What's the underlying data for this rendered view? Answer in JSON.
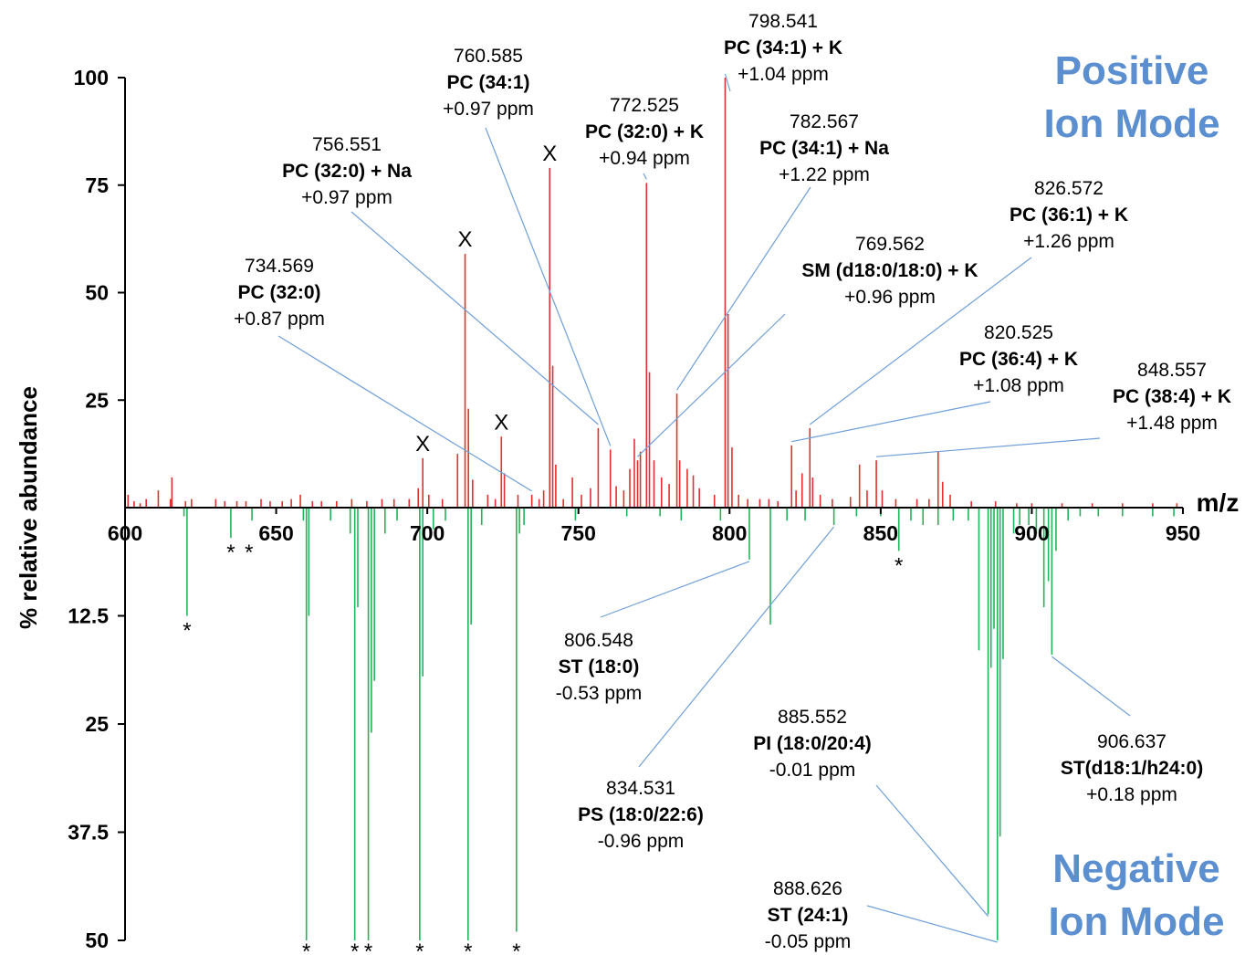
{
  "chart_data": {
    "type": "bar",
    "ylabel": "% relative abundance",
    "xlabel": "m/z",
    "xlim": [
      600,
      950
    ],
    "x_ticks": [
      "600",
      "650",
      "700",
      "750",
      "800",
      "850",
      "900",
      "950"
    ],
    "positive_ylim": [
      0,
      100
    ],
    "positive_y_ticks": [
      "100",
      "75",
      "50",
      "25"
    ],
    "negative_ylim": [
      0,
      50
    ],
    "negative_y_ticks": [
      "12.5",
      "25",
      "37.5",
      "50"
    ],
    "modes": {
      "positive": [
        "Positive",
        "Ion Mode"
      ],
      "negative": [
        "Negative",
        "Ion Mode"
      ]
    },
    "colors": {
      "positive": "#e03030",
      "negative": "#22b45a",
      "leader": "#6f9fd8",
      "mode_title": "#5b8fd0"
    },
    "series": [
      {
        "name": "positive",
        "peaks": [
          [
            601,
            3
          ],
          [
            603,
            1.5
          ],
          [
            605,
            1
          ],
          [
            607,
            2
          ],
          [
            611,
            4
          ],
          [
            615,
            2
          ],
          [
            615.5,
            7
          ],
          [
            620,
            1.5
          ],
          [
            622,
            2
          ],
          [
            630,
            2
          ],
          [
            633,
            1.5
          ],
          [
            637,
            1.5
          ],
          [
            640,
            1.5
          ],
          [
            645,
            2
          ],
          [
            648,
            1.5
          ],
          [
            652,
            1.5
          ],
          [
            655,
            2
          ],
          [
            658,
            3
          ],
          [
            662,
            1.5
          ],
          [
            665,
            1.5
          ],
          [
            670,
            1.5
          ],
          [
            675,
            2
          ],
          [
            680,
            1.5
          ],
          [
            685,
            2
          ],
          [
            689,
            2
          ],
          [
            694,
            2
          ],
          [
            697,
            4.5
          ],
          [
            698.5,
            11.5
          ],
          [
            700.5,
            3
          ],
          [
            705,
            2
          ],
          [
            710,
            12.5
          ],
          [
            712.5,
            59
          ],
          [
            713.6,
            23
          ],
          [
            715,
            6.5
          ],
          [
            720,
            3
          ],
          [
            722.5,
            2
          ],
          [
            724.5,
            16.5
          ],
          [
            725.5,
            8
          ],
          [
            730,
            3
          ],
          [
            734.569,
            3
          ],
          [
            737,
            2
          ],
          [
            738.5,
            4
          ],
          [
            740.5,
            79
          ],
          [
            741.5,
            33
          ],
          [
            742.5,
            10
          ],
          [
            745,
            2
          ],
          [
            748,
            7
          ],
          [
            751,
            3
          ],
          [
            754,
            4.5
          ],
          [
            756.551,
            18.5
          ],
          [
            760.585,
            13.5
          ],
          [
            762.5,
            5
          ],
          [
            765,
            4
          ],
          [
            767,
            9
          ],
          [
            768.5,
            16
          ],
          [
            769.562,
            11
          ],
          [
            770.5,
            13
          ],
          [
            772.525,
            75.5
          ],
          [
            773.5,
            31.5
          ],
          [
            775,
            11
          ],
          [
            777.5,
            7
          ],
          [
            780,
            5.5
          ],
          [
            782.567,
            26.5
          ],
          [
            783.5,
            11
          ],
          [
            786,
            9
          ],
          [
            788,
            7.5
          ],
          [
            790,
            4.5
          ],
          [
            795,
            3
          ],
          [
            798.541,
            100
          ],
          [
            799.5,
            45
          ],
          [
            800.8,
            14
          ],
          [
            803,
            3
          ],
          [
            806,
            2
          ],
          [
            810,
            2
          ],
          [
            813,
            2
          ],
          [
            816,
            1.5
          ],
          [
            820.525,
            14.5
          ],
          [
            822,
            4
          ],
          [
            824,
            8
          ],
          [
            826.572,
            18.5
          ],
          [
            827.5,
            7
          ],
          [
            830,
            3
          ],
          [
            834,
            2
          ],
          [
            840,
            2.5
          ],
          [
            843,
            10
          ],
          [
            845.5,
            4
          ],
          [
            848.557,
            11
          ],
          [
            850.5,
            4
          ],
          [
            855,
            2
          ],
          [
            862,
            2
          ],
          [
            866,
            2
          ],
          [
            869,
            13
          ],
          [
            870.5,
            6
          ],
          [
            873,
            3
          ],
          [
            880,
            1.5
          ],
          [
            888,
            1.5
          ],
          [
            895,
            1
          ],
          [
            900,
            1
          ],
          [
            910,
            1
          ],
          [
            920,
            1
          ],
          [
            930,
            1
          ],
          [
            940,
            1
          ],
          [
            948,
            1
          ]
        ]
      },
      {
        "name": "negative",
        "peaks": [
          [
            619.5,
            1
          ],
          [
            620.5,
            12.5
          ],
          [
            635,
            3.5
          ],
          [
            642,
            1.5
          ],
          [
            659,
            1.5
          ],
          [
            660,
            50
          ],
          [
            660.8,
            12.5
          ],
          [
            668,
            1.5
          ],
          [
            674.5,
            3
          ],
          [
            676,
            50
          ],
          [
            677,
            11.5
          ],
          [
            680.5,
            50
          ],
          [
            681.5,
            26
          ],
          [
            682.5,
            20
          ],
          [
            686,
            3
          ],
          [
            690,
            1.5
          ],
          [
            697.5,
            50
          ],
          [
            698.5,
            19.5
          ],
          [
            702,
            2.5
          ],
          [
            706,
            1.5
          ],
          [
            713.5,
            50
          ],
          [
            714.5,
            13.5
          ],
          [
            718,
            2
          ],
          [
            729.5,
            49
          ],
          [
            730.5,
            3
          ],
          [
            732,
            2
          ],
          [
            749,
            1.5
          ],
          [
            766,
            1
          ],
          [
            777,
            1
          ],
          [
            784,
            1.5
          ],
          [
            797,
            1.5
          ],
          [
            806.548,
            6
          ],
          [
            813.5,
            13.5
          ],
          [
            819,
            1.5
          ],
          [
            825,
            1.5
          ],
          [
            834.531,
            2
          ],
          [
            842,
            1
          ],
          [
            850,
            1
          ],
          [
            856,
            5
          ],
          [
            860,
            1.5
          ],
          [
            864,
            2
          ],
          [
            869,
            2
          ],
          [
            874,
            1.5
          ],
          [
            879,
            1.5
          ],
          [
            882.5,
            16.5
          ],
          [
            885.552,
            47
          ],
          [
            886.5,
            18.5
          ],
          [
            887.5,
            14
          ],
          [
            888.626,
            50
          ],
          [
            889.5,
            38
          ],
          [
            890.5,
            17.5
          ],
          [
            894,
            3
          ],
          [
            896,
            2
          ],
          [
            899,
            2
          ],
          [
            901.5,
            3
          ],
          [
            904,
            11.5
          ],
          [
            905.5,
            8.5
          ],
          [
            906.637,
            17
          ],
          [
            908,
            5
          ],
          [
            912,
            1.5
          ],
          [
            916,
            1
          ],
          [
            922,
            1
          ],
          [
            930,
            1
          ],
          [
            940,
            1
          ],
          [
            947,
            1
          ]
        ]
      }
    ],
    "markers": [
      {
        "text": "X",
        "mz": 698.5,
        "mode": "positive",
        "value": 11.5
      },
      {
        "text": "X",
        "mz": 712.5,
        "mode": "positive",
        "value": 59
      },
      {
        "text": "X",
        "mz": 724.5,
        "mode": "positive",
        "value": 16.5
      },
      {
        "text": "X",
        "mz": 740.5,
        "mode": "positive",
        "value": 79
      },
      {
        "text": "*",
        "mz": 620.5,
        "mode": "negative",
        "value": 12.5
      },
      {
        "text": "*",
        "mz": 635,
        "mode": "negative",
        "value": 3.5
      },
      {
        "text": "*",
        "mz": 641,
        "mode": "negative",
        "value": 3.5
      },
      {
        "text": "*",
        "mz": 660,
        "mode": "negative",
        "value": 50
      },
      {
        "text": "*",
        "mz": 676,
        "mode": "negative",
        "value": 50
      },
      {
        "text": "*",
        "mz": 680.5,
        "mode": "negative",
        "value": 50
      },
      {
        "text": "*",
        "mz": 697.5,
        "mode": "negative",
        "value": 50
      },
      {
        "text": "*",
        "mz": 713.5,
        "mode": "negative",
        "value": 50
      },
      {
        "text": "*",
        "mz": 729.5,
        "mode": "negative",
        "value": 49
      },
      {
        "text": "*",
        "mz": 856,
        "mode": "negative",
        "value": 5
      }
    ],
    "annotations": [
      {
        "mz": "734.569",
        "name": "PC (32:0)",
        "error": "+0.87 ppm",
        "peak_mz": 734.569,
        "mode": "positive",
        "peak_value": 3
      },
      {
        "mz": "756.551",
        "name": "PC (32:0) + Na",
        "error": "+0.97 ppm",
        "peak_mz": 756.551,
        "mode": "positive",
        "peak_value": 18.5
      },
      {
        "mz": "760.585",
        "name": "PC (34:1)",
        "error": "+0.97 ppm",
        "peak_mz": 760.585,
        "mode": "positive",
        "peak_value": 13.5
      },
      {
        "mz": "772.525",
        "name": "PC (32:0) + K",
        "error": "+0.94 ppm",
        "peak_mz": 772.525,
        "mode": "positive",
        "peak_value": 75.5
      },
      {
        "mz": "798.541",
        "name": "PC (34:1) + K",
        "error": "+1.04 ppm",
        "peak_mz": 798.541,
        "mode": "positive",
        "peak_value": 100
      },
      {
        "mz": "782.567",
        "name": "PC (34:1) + Na",
        "error": "+1.22 ppm",
        "peak_mz": 782.567,
        "mode": "positive",
        "peak_value": 26.5
      },
      {
        "mz": "769.562",
        "name": "SM (d18:0/18:0) + K",
        "error": "+0.96 ppm",
        "peak_mz": 769.562,
        "mode": "positive",
        "peak_value": 11
      },
      {
        "mz": "826.572",
        "name": "PC (36:1) + K",
        "error": "+1.26 ppm",
        "peak_mz": 826.572,
        "mode": "positive",
        "peak_value": 18.5
      },
      {
        "mz": "820.525",
        "name": "PC (36:4) + K",
        "error": "+1.08 ppm",
        "peak_mz": 820.525,
        "mode": "positive",
        "peak_value": 14.5
      },
      {
        "mz": "848.557",
        "name": "PC (38:4) + K",
        "error": "+1.48 ppm",
        "peak_mz": 848.557,
        "mode": "positive",
        "peak_value": 11
      },
      {
        "mz": "806.548",
        "name": "ST (18:0)",
        "error": "-0.53 ppm",
        "peak_mz": 806.548,
        "mode": "negative",
        "peak_value": 6
      },
      {
        "mz": "834.531",
        "name": "PS (18:0/22:6)",
        "error": "-0.96 ppm",
        "peak_mz": 834.531,
        "mode": "negative",
        "peak_value": 2
      },
      {
        "mz": "885.552",
        "name": "PI (18:0/20:4)",
        "error": "-0.01 ppm",
        "peak_mz": 885.552,
        "mode": "negative",
        "peak_value": 47
      },
      {
        "mz": "888.626",
        "name": "ST (24:1)",
        "error": "-0.05 ppm",
        "peak_mz": 888.626,
        "mode": "negative",
        "peak_value": 50
      },
      {
        "mz": "906.637",
        "name": "ST(d18:1/h24:0)",
        "error": "+0.18 ppm",
        "peak_mz": 906.637,
        "mode": "negative",
        "peak_value": 17
      }
    ]
  }
}
